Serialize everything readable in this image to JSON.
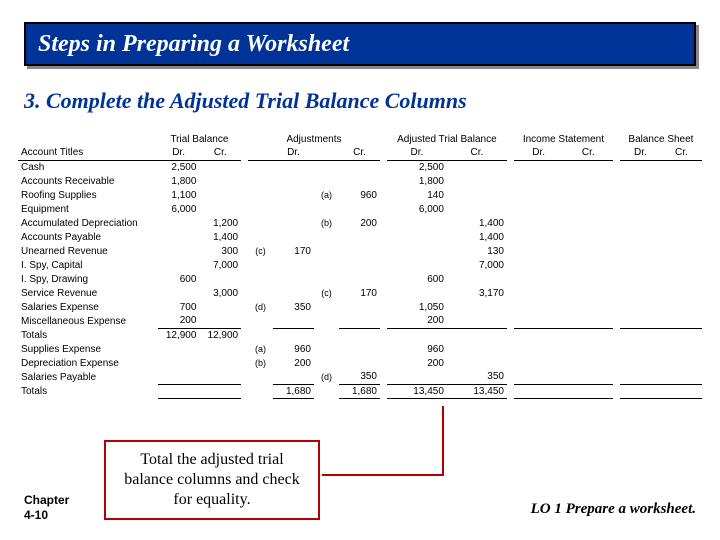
{
  "title": "Steps in Preparing a Worksheet",
  "subhead": "3. Complete the Adjusted Trial Balance Columns",
  "section_headers": [
    "Trial Balance",
    "Adjustments",
    "Adjusted Trial Balance",
    "Income Statement",
    "Balance Sheet"
  ],
  "drcr": {
    "dr": "Dr.",
    "cr": "Cr."
  },
  "acct_header": "Account Titles",
  "rows": [
    {
      "acct": "Cash",
      "tb_dr": "2,500",
      "atb_dr": "2,500"
    },
    {
      "acct": "Accounts Receivable",
      "tb_dr": "1,800",
      "atb_dr": "1,800"
    },
    {
      "acct": "Roofing Supplies",
      "tb_dr": "1,100",
      "adj_ref_r": "(a)",
      "adj_cr": "960",
      "atb_dr": "140"
    },
    {
      "acct": "Equipment",
      "tb_dr": "6,000",
      "atb_dr": "6,000"
    },
    {
      "acct": "Accumulated Depreciation",
      "tb_cr": "1,200",
      "adj_ref_r": "(b)",
      "adj_cr": "200",
      "atb_cr": "1,400"
    },
    {
      "acct": "Accounts Payable",
      "tb_cr": "1,400",
      "atb_cr": "1,400"
    },
    {
      "acct": "Unearned Revenue",
      "tb_cr": "300",
      "adj_ref_l": "(c)",
      "adj_dr": "170",
      "atb_cr": "130"
    },
    {
      "acct": "I. Spy, Capital",
      "tb_cr": "7,000",
      "atb_cr": "7,000"
    },
    {
      "acct": "I. Spy, Drawing",
      "tb_dr": "600",
      "atb_dr": "600"
    },
    {
      "acct": "Service Revenue",
      "tb_cr": "3,000",
      "adj_ref_r": "(c)",
      "adj_cr": "170",
      "atb_cr": "3,170"
    },
    {
      "acct": "Salaries Expense",
      "tb_dr": "700",
      "adj_ref_l": "(d)",
      "adj_dr": "350",
      "atb_dr": "1,050"
    },
    {
      "acct": "Miscellaneous Expense",
      "tb_dr": "200",
      "atb_dr": "200"
    }
  ],
  "totals1": {
    "acct": "Totals",
    "tb_dr": "12,900",
    "tb_cr": "12,900"
  },
  "rows2": [
    {
      "acct": "Supplies Expense",
      "adj_ref_l": "(a)",
      "adj_dr": "960",
      "atb_dr": "960"
    },
    {
      "acct": "Depreciation Expense",
      "adj_ref_l": "(b)",
      "adj_dr": "200",
      "atb_dr": "200"
    },
    {
      "acct": "Salaries Payable",
      "adj_ref_r": "(d)",
      "adj_cr": "350",
      "atb_cr": "350"
    }
  ],
  "grand": {
    "acct": "Totals",
    "adj_dr": "1,680",
    "adj_cr": "1,680",
    "atb_dr": "13,450",
    "atb_cr": "13,450"
  },
  "callout": "Total the adjusted trial balance columns and check for equality.",
  "chapter": {
    "l1": "Chapter",
    "l2": "4-10"
  },
  "lo": "LO 1   Prepare a worksheet."
}
